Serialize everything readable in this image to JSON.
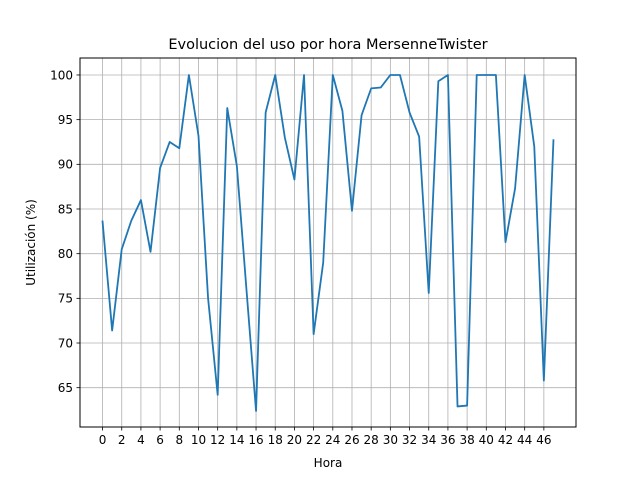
{
  "chart_data": {
    "type": "line",
    "title": "Evolucion del uso por hora MersenneTwister",
    "xlabel": "Hora",
    "ylabel": "Utilización (%)",
    "grid": true,
    "xlim": [
      -2.35,
      49.35
    ],
    "ylim": [
      60.6,
      101.9
    ],
    "xticks": [
      0,
      2,
      4,
      6,
      8,
      10,
      12,
      14,
      16,
      18,
      20,
      22,
      24,
      26,
      28,
      30,
      32,
      34,
      36,
      38,
      40,
      42,
      44,
      46
    ],
    "yticks": [
      65,
      70,
      75,
      80,
      85,
      90,
      95,
      100
    ],
    "series": [
      {
        "color": "#1f77b4",
        "x": [
          0,
          1,
          2,
          3,
          4,
          5,
          6,
          7,
          8,
          9,
          10,
          11,
          12,
          13,
          14,
          15,
          16,
          17,
          18,
          19,
          20,
          21,
          22,
          23,
          24,
          25,
          26,
          27,
          28,
          29,
          30,
          31,
          32,
          33,
          34,
          35,
          36,
          37,
          38,
          39,
          40,
          41,
          42,
          43,
          44,
          45,
          46,
          47
        ],
        "values": [
          83.6,
          71.4,
          80.5,
          83.7,
          86.0,
          80.2,
          89.6,
          92.5,
          91.8,
          100.0,
          93.2,
          75.0,
          64.2,
          96.3,
          89.8,
          76.0,
          62.4,
          95.8,
          100.0,
          93.0,
          88.3,
          100.0,
          71.0,
          79.0,
          100.0,
          96.0,
          84.8,
          95.5,
          98.5,
          98.6,
          100.0,
          100.0,
          95.8,
          93.1,
          75.6,
          99.3,
          100.0,
          62.9,
          63.0,
          100.0,
          100.0,
          100.0,
          81.3,
          87.3,
          100.0,
          92.0,
          65.8,
          92.7
        ]
      }
    ]
  }
}
